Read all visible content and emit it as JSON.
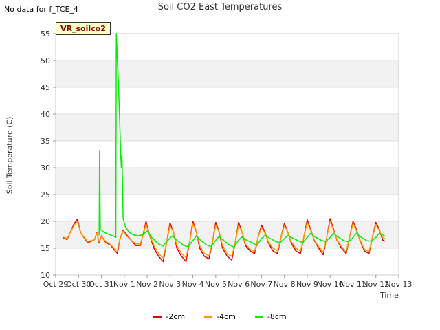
{
  "header": {
    "no_data_text": "No data for f_TCE_4",
    "badge_text": "VR_soilco2"
  },
  "chart_data": {
    "type": "line",
    "title": "Soil CO2 East Temperatures",
    "xlabel": "Time",
    "ylabel": "Soil Temperature (C)",
    "x_ticks": [
      "Oct 29",
      "Oct 30",
      "Oct 31",
      "Nov 1",
      "Nov 2",
      "Nov 3",
      "Nov 4",
      "Nov 5",
      "Nov 6",
      "Nov 7",
      "Nov 8",
      "Nov 9",
      "Nov 10",
      "Nov 11",
      "Nov 12",
      "Nov 13"
    ],
    "y_ticks": [
      10,
      15,
      20,
      25,
      30,
      35,
      40,
      45,
      50,
      55
    ],
    "ylim": [
      10,
      55
    ],
    "xlim_days": [
      0,
      15
    ],
    "grid": "horizontal bands",
    "legend_position": "bottom-center",
    "series": [
      {
        "name": "-2cm",
        "color": "#dd0000",
        "points": [
          [
            0.3,
            17
          ],
          [
            0.5,
            16.6
          ],
          [
            0.8,
            19.5
          ],
          [
            0.95,
            20.4
          ],
          [
            1.1,
            17.8
          ],
          [
            1.4,
            16
          ],
          [
            1.7,
            16.6
          ],
          [
            1.8,
            17.9
          ],
          [
            1.9,
            16
          ],
          [
            2.0,
            17.3
          ],
          [
            2.2,
            16
          ],
          [
            2.4,
            15.6
          ],
          [
            2.6,
            14.5
          ],
          [
            2.7,
            14
          ],
          [
            2.8,
            16.5
          ],
          [
            2.95,
            18.4
          ],
          [
            3.1,
            17.5
          ],
          [
            3.3,
            16.5
          ],
          [
            3.5,
            15.5
          ],
          [
            3.7,
            15.5
          ],
          [
            3.85,
            18
          ],
          [
            3.95,
            20
          ],
          [
            4.1,
            17.5
          ],
          [
            4.3,
            15
          ],
          [
            4.5,
            13.5
          ],
          [
            4.7,
            12.5
          ],
          [
            4.85,
            16
          ],
          [
            5.0,
            19.7
          ],
          [
            5.15,
            18
          ],
          [
            5.3,
            15
          ],
          [
            5.5,
            13.5
          ],
          [
            5.7,
            12.5
          ],
          [
            5.85,
            16
          ],
          [
            6.0,
            20
          ],
          [
            6.15,
            18
          ],
          [
            6.3,
            15
          ],
          [
            6.5,
            13.5
          ],
          [
            6.7,
            13
          ],
          [
            6.85,
            16
          ],
          [
            7.0,
            19.8
          ],
          [
            7.15,
            18
          ],
          [
            7.3,
            15
          ],
          [
            7.5,
            13.5
          ],
          [
            7.7,
            12.8
          ],
          [
            7.85,
            16
          ],
          [
            8.0,
            19.8
          ],
          [
            8.15,
            18
          ],
          [
            8.3,
            15.5
          ],
          [
            8.5,
            14.5
          ],
          [
            8.7,
            14
          ],
          [
            8.85,
            17
          ],
          [
            9.0,
            19.3
          ],
          [
            9.15,
            18
          ],
          [
            9.3,
            16
          ],
          [
            9.5,
            14.5
          ],
          [
            9.7,
            14
          ],
          [
            9.85,
            17
          ],
          [
            10.0,
            19.6
          ],
          [
            10.15,
            18
          ],
          [
            10.3,
            16
          ],
          [
            10.5,
            14.5
          ],
          [
            10.7,
            14
          ],
          [
            10.85,
            17
          ],
          [
            11.0,
            20.3
          ],
          [
            11.15,
            18.5
          ],
          [
            11.3,
            16.5
          ],
          [
            11.5,
            15
          ],
          [
            11.7,
            13.8
          ],
          [
            11.85,
            17
          ],
          [
            12.0,
            20.5
          ],
          [
            12.15,
            18.5
          ],
          [
            12.3,
            16.5
          ],
          [
            12.5,
            15
          ],
          [
            12.7,
            14
          ],
          [
            12.85,
            17
          ],
          [
            13.0,
            20
          ],
          [
            13.15,
            18.5
          ],
          [
            13.3,
            16.5
          ],
          [
            13.5,
            14.5
          ],
          [
            13.7,
            14
          ],
          [
            13.85,
            17
          ],
          [
            14.0,
            19.8
          ],
          [
            14.15,
            18.5
          ],
          [
            14.3,
            16.5
          ],
          [
            14.4,
            16.3
          ]
        ]
      },
      {
        "name": "-4cm",
        "color": "#ff9900",
        "points": [
          [
            0.3,
            17.1
          ],
          [
            0.5,
            16.8
          ],
          [
            0.8,
            19.2
          ],
          [
            0.95,
            20
          ],
          [
            1.1,
            17.8
          ],
          [
            1.4,
            16.2
          ],
          [
            1.7,
            16.6
          ],
          [
            1.8,
            17.8
          ],
          [
            1.9,
            16.2
          ],
          [
            2.0,
            17.2
          ],
          [
            2.2,
            16.2
          ],
          [
            2.4,
            15.7
          ],
          [
            2.6,
            14.8
          ],
          [
            2.7,
            14.5
          ],
          [
            2.8,
            16.5
          ],
          [
            2.95,
            18.2
          ],
          [
            3.1,
            17.3
          ],
          [
            3.3,
            16.5
          ],
          [
            3.5,
            15.8
          ],
          [
            3.7,
            15.8
          ],
          [
            3.85,
            17.8
          ],
          [
            3.95,
            19.5
          ],
          [
            4.1,
            17.5
          ],
          [
            4.3,
            15.5
          ],
          [
            4.5,
            14
          ],
          [
            4.7,
            13.2
          ],
          [
            4.85,
            16
          ],
          [
            5.0,
            19.2
          ],
          [
            5.15,
            18
          ],
          [
            5.3,
            15.5
          ],
          [
            5.5,
            14
          ],
          [
            5.7,
            13.3
          ],
          [
            5.85,
            16
          ],
          [
            6.0,
            19.5
          ],
          [
            6.15,
            18
          ],
          [
            6.3,
            15.5
          ],
          [
            6.5,
            14
          ],
          [
            6.7,
            13.6
          ],
          [
            6.85,
            16
          ],
          [
            7.0,
            19.3
          ],
          [
            7.15,
            18
          ],
          [
            7.3,
            15.5
          ],
          [
            7.5,
            14
          ],
          [
            7.7,
            13.5
          ],
          [
            7.85,
            16
          ],
          [
            8.0,
            19.3
          ],
          [
            8.15,
            18
          ],
          [
            8.3,
            15.8
          ],
          [
            8.5,
            14.8
          ],
          [
            8.7,
            14.4
          ],
          [
            8.85,
            17
          ],
          [
            9.0,
            18.9
          ],
          [
            9.15,
            17.8
          ],
          [
            9.3,
            16.2
          ],
          [
            9.5,
            15
          ],
          [
            9.7,
            14.5
          ],
          [
            9.85,
            17
          ],
          [
            10.0,
            19.2
          ],
          [
            10.15,
            18
          ],
          [
            10.3,
            16.2
          ],
          [
            10.5,
            15
          ],
          [
            10.7,
            14.5
          ],
          [
            10.85,
            17
          ],
          [
            11.0,
            19.8
          ],
          [
            11.15,
            18.3
          ],
          [
            11.3,
            16.6
          ],
          [
            11.5,
            15.3
          ],
          [
            11.7,
            14.3
          ],
          [
            11.85,
            17
          ],
          [
            12.0,
            20
          ],
          [
            12.15,
            18.3
          ],
          [
            12.3,
            16.6
          ],
          [
            12.5,
            15.3
          ],
          [
            12.7,
            14.4
          ],
          [
            12.85,
            17
          ],
          [
            13.0,
            19.6
          ],
          [
            13.15,
            18.3
          ],
          [
            13.3,
            16.6
          ],
          [
            13.5,
            14.8
          ],
          [
            13.7,
            14.4
          ],
          [
            13.85,
            17
          ],
          [
            14.0,
            19.4
          ],
          [
            14.15,
            18.3
          ],
          [
            14.3,
            17
          ],
          [
            14.4,
            16.8
          ]
        ]
      },
      {
        "name": "-8cm",
        "color": "#00ee00",
        "points": [
          [
            1.9,
            17.4
          ],
          [
            1.92,
            33.2
          ],
          [
            1.95,
            18.5
          ],
          [
            2.1,
            18
          ],
          [
            2.3,
            17.6
          ],
          [
            2.5,
            17.3
          ],
          [
            2.6,
            17.1
          ],
          [
            2.63,
            17
          ],
          [
            2.65,
            55
          ],
          [
            2.75,
            45
          ],
          [
            2.85,
            32
          ],
          [
            2.87,
            30
          ],
          [
            2.9,
            32.2
          ],
          [
            2.95,
            20.5
          ],
          [
            3.05,
            19
          ],
          [
            3.2,
            18
          ],
          [
            3.4,
            17.5
          ],
          [
            3.6,
            17.3
          ],
          [
            3.8,
            17.5
          ],
          [
            4.0,
            18.2
          ],
          [
            4.2,
            17
          ],
          [
            4.5,
            15.8
          ],
          [
            4.7,
            15.4
          ],
          [
            4.85,
            16.2
          ],
          [
            5.1,
            17.3
          ],
          [
            5.3,
            16.5
          ],
          [
            5.6,
            15.5
          ],
          [
            5.8,
            15.3
          ],
          [
            6.0,
            16.4
          ],
          [
            6.15,
            17.3
          ],
          [
            6.3,
            16.6
          ],
          [
            6.6,
            15.6
          ],
          [
            6.8,
            15.3
          ],
          [
            7.0,
            16.5
          ],
          [
            7.15,
            17.2
          ],
          [
            7.3,
            16.6
          ],
          [
            7.6,
            15.6
          ],
          [
            7.8,
            15.2
          ],
          [
            8.0,
            16.5
          ],
          [
            8.15,
            17.1
          ],
          [
            8.3,
            16.6
          ],
          [
            8.6,
            16
          ],
          [
            8.8,
            15.5
          ],
          [
            9.0,
            16.8
          ],
          [
            9.15,
            17.4
          ],
          [
            9.3,
            17
          ],
          [
            9.6,
            16.3
          ],
          [
            9.8,
            16
          ],
          [
            10.0,
            16.8
          ],
          [
            10.15,
            17.4
          ],
          [
            10.3,
            17
          ],
          [
            10.6,
            16.4
          ],
          [
            10.8,
            16
          ],
          [
            11.0,
            17
          ],
          [
            11.15,
            17.8
          ],
          [
            11.3,
            17.2
          ],
          [
            11.6,
            16.5
          ],
          [
            11.8,
            16.2
          ],
          [
            12.0,
            17
          ],
          [
            12.15,
            17.8
          ],
          [
            12.3,
            17.2
          ],
          [
            12.6,
            16.4
          ],
          [
            12.8,
            16.2
          ],
          [
            13.0,
            17
          ],
          [
            13.15,
            17.8
          ],
          [
            13.3,
            17.2
          ],
          [
            13.6,
            16.4
          ],
          [
            13.8,
            16.3
          ],
          [
            14.0,
            17
          ],
          [
            14.15,
            17.8
          ],
          [
            14.3,
            17.5
          ],
          [
            14.4,
            17.2
          ]
        ]
      }
    ]
  }
}
